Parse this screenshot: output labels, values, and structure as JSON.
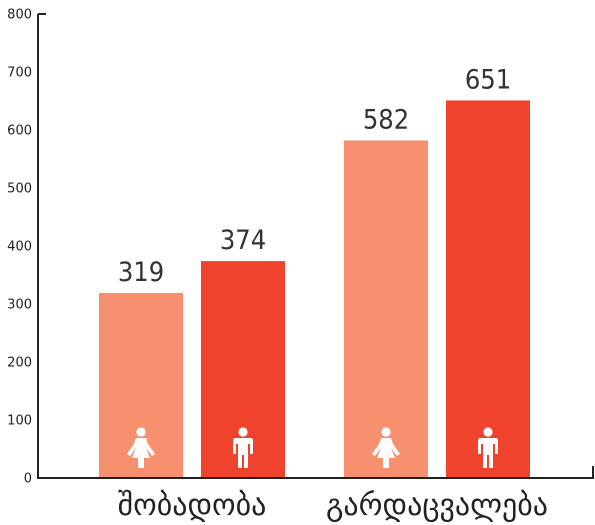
{
  "chart_data": {
    "type": "bar",
    "categories": [
      "შობადობა",
      "გარდაცვალება"
    ],
    "series": [
      {
        "values": [
          319,
          582
        ],
        "color": "#f7906f",
        "icon": "female-icon"
      },
      {
        "values": [
          374,
          651
        ],
        "color": "#ef432e",
        "icon": "male-icon"
      }
    ],
    "ylim": [
      0,
      800
    ],
    "yticks": [
      0,
      100,
      200,
      300,
      400,
      500,
      600,
      700,
      800
    ],
    "grid": false,
    "legend": "none"
  }
}
